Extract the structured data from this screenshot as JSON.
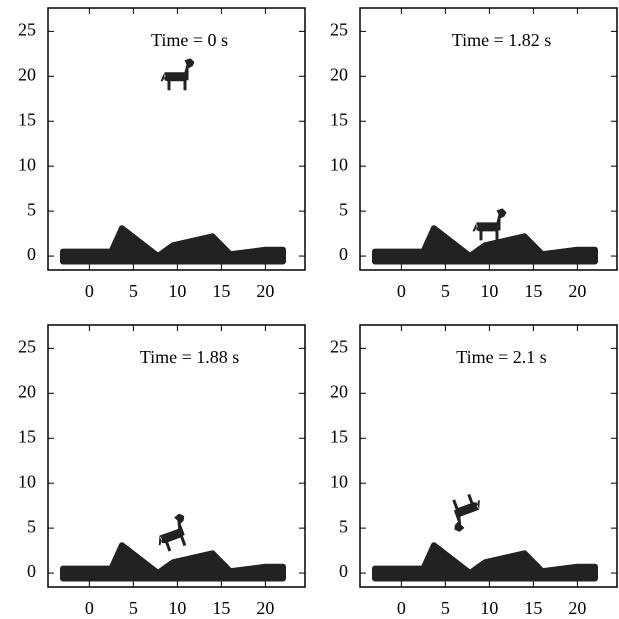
{
  "chart_data": [
    {
      "type": "area",
      "title": "Time = 0 s",
      "xlim": [
        -4.7,
        24.5
      ],
      "ylim": [
        -1.55,
        27.6
      ],
      "xticks": [
        0,
        5,
        10,
        15,
        20
      ],
      "yticks": [
        0,
        5,
        10,
        15,
        20,
        25
      ],
      "x": [
        -3,
        2.5,
        3.7,
        7.8,
        9.5,
        14,
        16,
        20,
        22
      ],
      "values": [
        0.5,
        0.5,
        3.1,
        0,
        1.2,
        2.2,
        0.2,
        0.7,
        0.7
      ],
      "base": -0.6,
      "marker": {
        "x": 9.9,
        "y": 20,
        "rotation": 0
      },
      "color": "#222222"
    },
    {
      "type": "area",
      "title": "Time = 1.82 s",
      "xlim": [
        -4.7,
        24.5
      ],
      "ylim": [
        -1.55,
        27.6
      ],
      "xticks": [
        0,
        5,
        10,
        15,
        20
      ],
      "yticks": [
        0,
        5,
        10,
        15,
        20,
        25
      ],
      "x": [
        -3,
        2.5,
        3.7,
        7.8,
        9.5,
        14,
        16,
        20,
        22
      ],
      "values": [
        0.5,
        0.5,
        3.1,
        0,
        1.2,
        2.2,
        0.2,
        0.7,
        0.7
      ],
      "base": -0.6,
      "marker": {
        "x": 9.9,
        "y": 3.3,
        "rotation": 0
      },
      "color": "#222222"
    },
    {
      "type": "area",
      "title": "Time = 1.88 s",
      "xlim": [
        -4.7,
        24.5
      ],
      "ylim": [
        -1.55,
        27.6
      ],
      "xticks": [
        0,
        5,
        10,
        15,
        20
      ],
      "yticks": [
        0,
        5,
        10,
        15,
        20,
        25
      ],
      "x": [
        -3,
        2.5,
        3.7,
        7.8,
        9.5,
        14,
        16,
        20,
        22
      ],
      "values": [
        0.5,
        0.5,
        3.1,
        0,
        1.2,
        2.2,
        0.2,
        0.7,
        0.7
      ],
      "base": -0.6,
      "marker": {
        "x": 9.4,
        "y": 4.2,
        "rotation": -20
      },
      "color": "#222222"
    },
    {
      "type": "area",
      "title": "Time = 2.1 s",
      "xlim": [
        -4.7,
        24.5
      ],
      "ylim": [
        -1.55,
        27.6
      ],
      "xticks": [
        0,
        5,
        10,
        15,
        20
      ],
      "yticks": [
        0,
        5,
        10,
        15,
        20,
        25
      ],
      "x": [
        -3,
        2.5,
        3.7,
        7.8,
        9.5,
        14,
        16,
        20,
        22
      ],
      "values": [
        0.5,
        0.5,
        3.1,
        0,
        1.2,
        2.2,
        0.2,
        0.7,
        0.7
      ],
      "base": -0.6,
      "marker": {
        "x": 7.4,
        "y": 7,
        "rotation": 160
      },
      "color": "#222222"
    }
  ]
}
